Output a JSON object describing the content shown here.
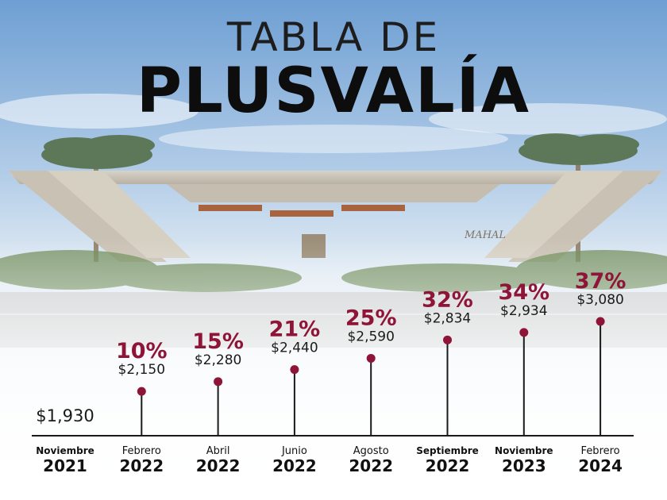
{
  "title_line1": "TABLA DE",
  "title_line2": "PLUSVALÍA",
  "logo_text": "MAHAL",
  "colors": {
    "accent": "#8e1538",
    "axis": "#1a1a1a",
    "text": "#111111"
  },
  "chart_data": {
    "type": "line",
    "categories": [
      "Noviembre 2021",
      "Febrero 2022",
      "Abril 2022",
      "Junio 2022",
      "Agosto 2022",
      "Septiembre 2022",
      "Noviembre 2023",
      "Febrero 2024"
    ],
    "points": [
      {
        "month": "Noviembre",
        "year": "2021",
        "price": 1930,
        "price_label": "$1,930",
        "pct_label": ""
      },
      {
        "month": "Febrero",
        "year": "2022",
        "price": 2150,
        "price_label": "$2,150",
        "pct_label": "10%"
      },
      {
        "month": "Abril",
        "year": "2022",
        "price": 2280,
        "price_label": "$2,280",
        "pct_label": "15%"
      },
      {
        "month": "Junio",
        "year": "2022",
        "price": 2440,
        "price_label": "$2,440",
        "pct_label": "21%"
      },
      {
        "month": "Agosto",
        "year": "2022",
        "price": 2590,
        "price_label": "$2,590",
        "pct_label": "25%"
      },
      {
        "month": "Septiembre",
        "year": "2022",
        "price": 2834,
        "price_label": "$2,834",
        "pct_label": "32%"
      },
      {
        "month": "Noviembre",
        "year": "2023",
        "price": 2934,
        "price_label": "$2,934",
        "pct_label": "34%"
      },
      {
        "month": "Febrero",
        "year": "2024",
        "price": 3080,
        "price_label": "$3,080",
        "pct_label": "37%"
      }
    ]
  }
}
